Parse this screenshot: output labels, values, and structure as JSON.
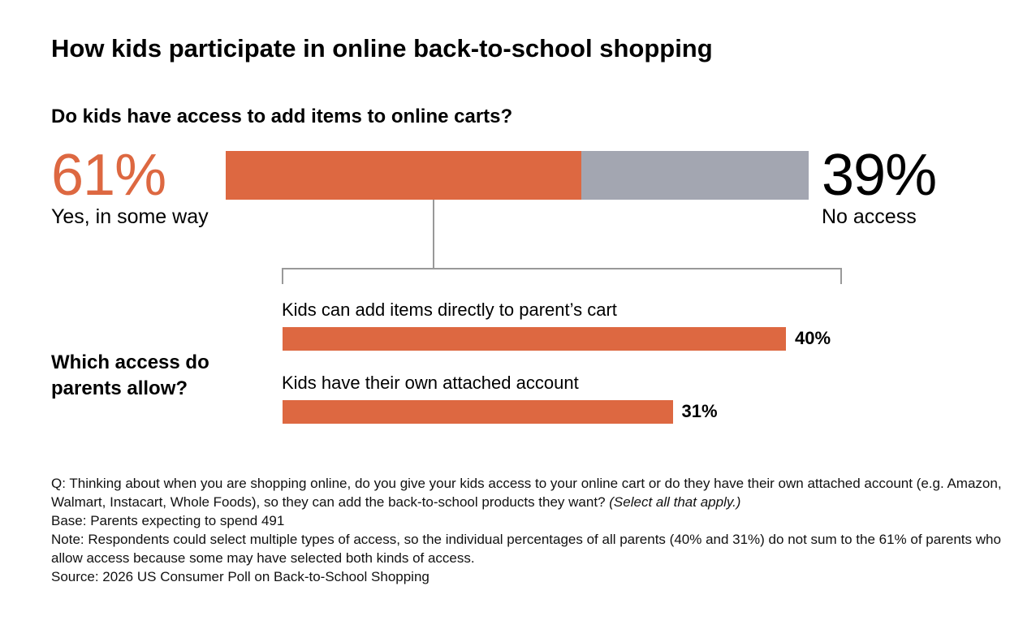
{
  "title": "How kids participate in online back-to-school shopping",
  "chart_data": [
    {
      "type": "stacked_bar",
      "subtitle": "Do kids have access to add items to online carts?",
      "series": [
        {
          "name": "Yes, in some way",
          "color": "#dd6841",
          "values": [
            61
          ],
          "value_labels": [
            "61%"
          ]
        },
        {
          "name": "No access",
          "color": "#a3a6b1",
          "values": [
            39
          ],
          "value_labels": [
            "39%"
          ]
        }
      ]
    },
    {
      "type": "bar",
      "subtitle": "Which access do parents allow?",
      "categories": [
        "Kids can add items directly to parent’s cart",
        "Kids have their own attached account"
      ],
      "values": [
        40,
        31
      ],
      "value_labels": [
        "40%",
        "31%"
      ],
      "color": "#dd6841"
    }
  ],
  "notes": [
    "Q: Thinking about when you are shopping online, do you give your kids access to your online cart or do they have their own attached account (e.g. Amazon, Walmart, Instacart, Whole Foods), so they can add the back-to-school products they want?",
    "Base: Parents expecting to spend 491",
    "Note: Respondents could select multiple types of access, so the individual percentages of all parents (40% and 31%) do not sum to the 61% of parents who allow access because some may have selected both kinds of access.",
    "Source: 2026 US Consumer Poll on Back-to-School Shopping"
  ],
  "question_emphasis": "(Select all that apply.)"
}
